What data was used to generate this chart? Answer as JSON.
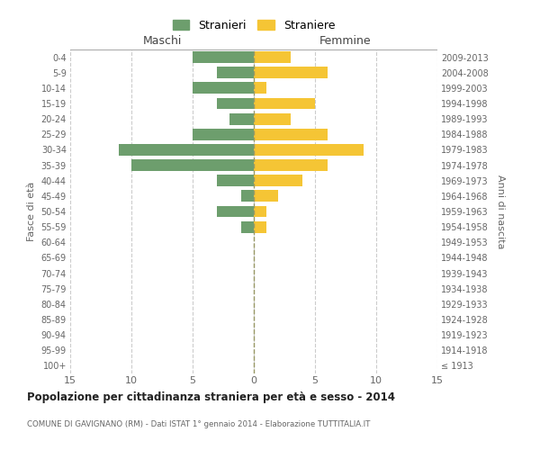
{
  "age_groups": [
    "100+",
    "95-99",
    "90-94",
    "85-89",
    "80-84",
    "75-79",
    "70-74",
    "65-69",
    "60-64",
    "55-59",
    "50-54",
    "45-49",
    "40-44",
    "35-39",
    "30-34",
    "25-29",
    "20-24",
    "15-19",
    "10-14",
    "5-9",
    "0-4"
  ],
  "birth_years": [
    "≤ 1913",
    "1914-1918",
    "1919-1923",
    "1924-1928",
    "1929-1933",
    "1934-1938",
    "1939-1943",
    "1944-1948",
    "1949-1953",
    "1954-1958",
    "1959-1963",
    "1964-1968",
    "1969-1973",
    "1974-1978",
    "1979-1983",
    "1984-1988",
    "1989-1993",
    "1994-1998",
    "1999-2003",
    "2004-2008",
    "2009-2013"
  ],
  "males": [
    0,
    0,
    0,
    0,
    0,
    0,
    0,
    0,
    0,
    1,
    3,
    1,
    3,
    10,
    11,
    5,
    2,
    3,
    5,
    3,
    5
  ],
  "females": [
    0,
    0,
    0,
    0,
    0,
    0,
    0,
    0,
    0,
    1,
    1,
    2,
    4,
    6,
    9,
    6,
    3,
    5,
    1,
    6,
    3
  ],
  "male_color": "#6d9e6d",
  "female_color": "#f5c535",
  "title": "Popolazione per cittadinanza straniera per età e sesso - 2014",
  "subtitle": "COMUNE DI GAVIGNANO (RM) - Dati ISTAT 1° gennaio 2014 - Elaborazione TUTTITALIA.IT",
  "xlabel_left": "Maschi",
  "xlabel_right": "Femmine",
  "ylabel_left": "Fasce di età",
  "ylabel_right": "Anni di nascita",
  "legend_male": "Stranieri",
  "legend_female": "Straniere",
  "xlim": 15,
  "background_color": "#ffffff",
  "grid_color": "#cccccc",
  "bar_height": 0.75
}
